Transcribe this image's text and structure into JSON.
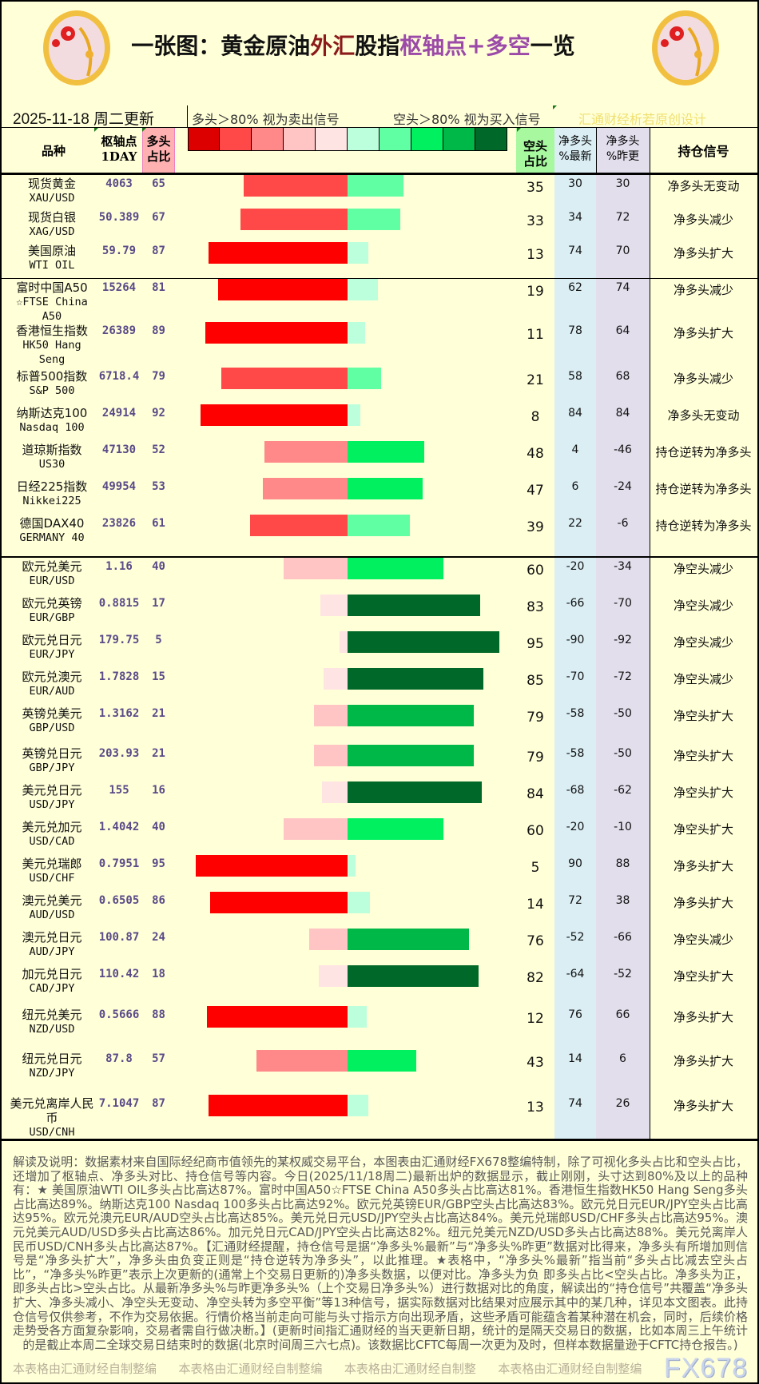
{
  "header": {
    "title_parts": [
      {
        "text": "一张图：黄金原油",
        "tone": "black"
      },
      {
        "text": "外汇",
        "tone": "red"
      },
      {
        "text": "股指",
        "tone": "black"
      },
      {
        "text": "枢轴点+多空",
        "tone": "purple"
      },
      {
        "text": "一览",
        "tone": "black"
      }
    ],
    "logo_text": "fx678 yly",
    "date": "2025-11-18 周二更新",
    "legend_long": "多头＞80% 视为卖出信号",
    "legend_short": "空头＞80% 视为买入信号",
    "credit": "汇通财经析若原创设计",
    "legend_colors": [
      "#dd0000",
      "#ff4848",
      "#ff8888",
      "#ffc4c4",
      "#ffe4e4",
      "#bcffdc",
      "#60ffa4",
      "#00f060",
      "#00b848",
      "#006828"
    ]
  },
  "columns": {
    "name": "品种",
    "pivot_1": "枢轴点",
    "pivot_2": "1DAY",
    "long_1": "多头",
    "long_2": "占比",
    "short_1": "空头",
    "short_2": "占比",
    "net_latest_1": "净多头",
    "net_latest_2": "%最新",
    "net_prev_1": "净多头",
    "net_prev_2": "%昨更",
    "signal": "持仓信号"
  },
  "colors": {
    "long_max": "#ff0000",
    "long_header": "#ffb0b0",
    "short_header": "#a8f8a0",
    "net_latest_bg": "#daeef4",
    "net_prev_bg": "#e2deec"
  },
  "rows": [
    {
      "cn": "现货黄金",
      "en": "XAU/USD",
      "pivot": "4063",
      "long": 65,
      "short": 35,
      "net_latest": "30",
      "net_prev": "30",
      "signal": "净多头无变动"
    },
    {
      "cn": "现货白银",
      "en": "XAG/USD",
      "pivot": "50.389",
      "long": 67,
      "short": 33,
      "net_latest": "34",
      "net_prev": "72",
      "signal": "净多头减少"
    },
    {
      "cn": "美国原油",
      "en": "WTI OIL",
      "pivot": "59.79",
      "long": 87,
      "short": 13,
      "net_latest": "74",
      "net_prev": "70",
      "signal": "净多头扩大"
    },
    {
      "cn": "富时中国A50",
      "en": "☆FTSE China A50",
      "pivot": "15264",
      "long": 81,
      "short": 19,
      "net_latest": "62",
      "net_prev": "74",
      "signal": "净多头减少"
    },
    {
      "cn": "香港恒生指数",
      "en": "HK50 Hang Seng",
      "pivot": "26389",
      "long": 89,
      "short": 11,
      "net_latest": "78",
      "net_prev": "64",
      "signal": "净多头扩大"
    },
    {
      "cn": "标普500指数",
      "en": "S&P 500",
      "pivot": "6718.4",
      "long": 79,
      "short": 21,
      "net_latest": "58",
      "net_prev": "68",
      "signal": "净多头减少"
    },
    {
      "cn": "纳斯达克100",
      "en": "Nasdaq 100",
      "pivot": "24914",
      "long": 92,
      "short": 8,
      "net_latest": "84",
      "net_prev": "84",
      "signal": "净多头无变动"
    },
    {
      "cn": "道琼斯指数",
      "en": "US30",
      "pivot": "47130",
      "long": 52,
      "short": 48,
      "net_latest": "4",
      "net_prev": "-46",
      "signal": "持仓逆转为净多头"
    },
    {
      "cn": "日经225指数",
      "en": "Nikkei225",
      "pivot": "49954",
      "long": 53,
      "short": 47,
      "net_latest": "6",
      "net_prev": "-24",
      "signal": "持仓逆转为净多头"
    },
    {
      "cn": "德国DAX40",
      "en": "GERMANY 40",
      "pivot": "23826",
      "long": 61,
      "short": 39,
      "net_latest": "22",
      "net_prev": "-6",
      "signal": "持仓逆转为净多头"
    },
    {
      "cn": "欧元兑美元",
      "en": "EUR/USD",
      "pivot": "1.16",
      "long": 40,
      "short": 60,
      "net_latest": "-20",
      "net_prev": "-34",
      "signal": "净空头减少"
    },
    {
      "cn": "欧元兑英镑",
      "en": "EUR/GBP",
      "pivot": "0.8815",
      "long": 17,
      "short": 83,
      "net_latest": "-66",
      "net_prev": "-70",
      "signal": "净空头减少"
    },
    {
      "cn": "欧元兑日元",
      "en": "EUR/JPY",
      "pivot": "179.75",
      "long": 5,
      "short": 95,
      "net_latest": "-90",
      "net_prev": "-92",
      "signal": "净空头减少"
    },
    {
      "cn": "欧元兑澳元",
      "en": "EUR/AUD",
      "pivot": "1.7828",
      "long": 15,
      "short": 85,
      "net_latest": "-70",
      "net_prev": "-72",
      "signal": "净空头减少"
    },
    {
      "cn": "英镑兑美元",
      "en": "GBP/USD",
      "pivot": "1.3162",
      "long": 21,
      "short": 79,
      "net_latest": "-58",
      "net_prev": "-50",
      "signal": "净空头扩大"
    },
    {
      "cn": "英镑兑日元",
      "en": "GBP/JPY",
      "pivot": "203.93",
      "long": 21,
      "short": 79,
      "net_latest": "-58",
      "net_prev": "-50",
      "signal": "净空头扩大"
    },
    {
      "cn": "美元兑日元",
      "en": "USD/JPY",
      "pivot": "155",
      "long": 16,
      "short": 84,
      "net_latest": "-68",
      "net_prev": "-62",
      "signal": "净空头扩大"
    },
    {
      "cn": "美元兑加元",
      "en": "USD/CAD",
      "pivot": "1.4042",
      "long": 40,
      "short": 60,
      "net_latest": "-20",
      "net_prev": "-10",
      "signal": "净空头扩大"
    },
    {
      "cn": "美元兑瑞郎",
      "en": "USD/CHF",
      "pivot": "0.7951",
      "long": 95,
      "short": 5,
      "net_latest": "90",
      "net_prev": "88",
      "signal": "净多头扩大"
    },
    {
      "cn": "澳元兑美元",
      "en": "AUD/USD",
      "pivot": "0.6505",
      "long": 86,
      "short": 14,
      "net_latest": "72",
      "net_prev": "38",
      "signal": "净多头扩大"
    },
    {
      "cn": "澳元兑日元",
      "en": "AUD/JPY",
      "pivot": "100.87",
      "long": 24,
      "short": 76,
      "net_latest": "-52",
      "net_prev": "-66",
      "signal": "净空头减少"
    },
    {
      "cn": "加元兑日元",
      "en": "CAD/JPY",
      "pivot": "110.42",
      "long": 18,
      "short": 82,
      "net_latest": "-64",
      "net_prev": "-52",
      "signal": "净空头扩大"
    },
    {
      "cn": "纽元兑美元",
      "en": "NZD/USD",
      "pivot": "0.5666",
      "long": 88,
      "short": 12,
      "net_latest": "76",
      "net_prev": "66",
      "signal": "净多头扩大"
    },
    {
      "cn": "纽元兑日元",
      "en": "NZD/JPY",
      "pivot": "87.8",
      "long": 57,
      "short": 43,
      "net_latest": "14",
      "net_prev": "6",
      "signal": "净多头扩大"
    },
    {
      "cn": "美元兑离岸人民币",
      "en": "USD/CNH",
      "pivot": "7.1047",
      "long": 87,
      "short": 13,
      "net_latest": "74",
      "net_prev": "26",
      "signal": "净多头扩大"
    }
  ],
  "notes": "解读及说明：数据素材来自国际经纪商市值领先的某权威交易平台，本图表由汇通财经FX678整编特制，除了可视化多头占比和空头占比，还增加了枢轴点、净多头对比、持仓信号等内容。今日(2025/11/18周二)最新出炉的数据显示，截止刚刚，头寸达到80%及以上的品种有：★ 美国原油WTI OIL多头占比高达87%。富时中国A50☆FTSE China A50多头占比高达81%。香港恒生指数HK50 Hang Seng多头占比高达89%。纳斯达克100 Nasdaq 100多头占比高达92%。欧元兑英镑EUR/GBP空头占比高达83%。欧元兑日元EUR/JPY空头占比高达95%。欧元兑澳元EUR/AUD空头占比高达85%。美元兑日元USD/JPY空头占比高达84%。美元兑瑞郎USD/CHF多头占比高达95%。澳元兑美元AUD/USD多头占比高达86%。加元兑日元CAD/JPY空头占比高达82%。纽元兑美元NZD/USD多头占比高达88%。美元兑离岸人民币USD/CNH多头占比高达87%。【汇通财经提醒，持仓信号是据“净多头%最新”与“净多头%昨更”数据对比得来，净多头有所增加则信号是“净多头扩大”，净多头由负变正则是“持仓逆转为净多头”，以此推理。★表格中，“净多头%最新”指当前“多头占比减去空头占比”，“净多头%昨更”表示上次更新的(通常上个交易日更新的)净多头数据，以便对比。净多头为负 即多头占比<空头占比。净多头为正，即多头占比>空头占比。从最新净多头%与昨更净多头%（上个交易日净多头%）进行数据对比的角度，解读出的“持仓信号”共覆盖“净多头扩大、净多头减小、净空头无变动、净空头转为多空平衡”等13种信号，据实际数据对比结果对应展示其中的某几种，详见本文图表。此持仓信号仅供参考，不作为交易依据。行情价格当前走向可能与头寸指示方向出现矛盾，这些矛盾可能蕴含着某种潜在机会，同时，后续价格走势受各方面复杂影响，交易者需自行做决断。】(更新时间指汇通财经的当天更新日期，统计的是隔天交易日的数据，比如本周三上午统计的是截止本周二全球交易日结束时的数据(北京时间周三六七点)。该数据比CFTC每周一次更为及时，但样本数据量逊于CFTC持仓报告。)",
  "watermarks": [
    "本表格由汇通财经自制整编",
    "本表格由汇通财经自制整编",
    "本表格由汇通财经自制整",
    "本表格由汇通财经自制整编"
  ],
  "brand": "FX678"
}
